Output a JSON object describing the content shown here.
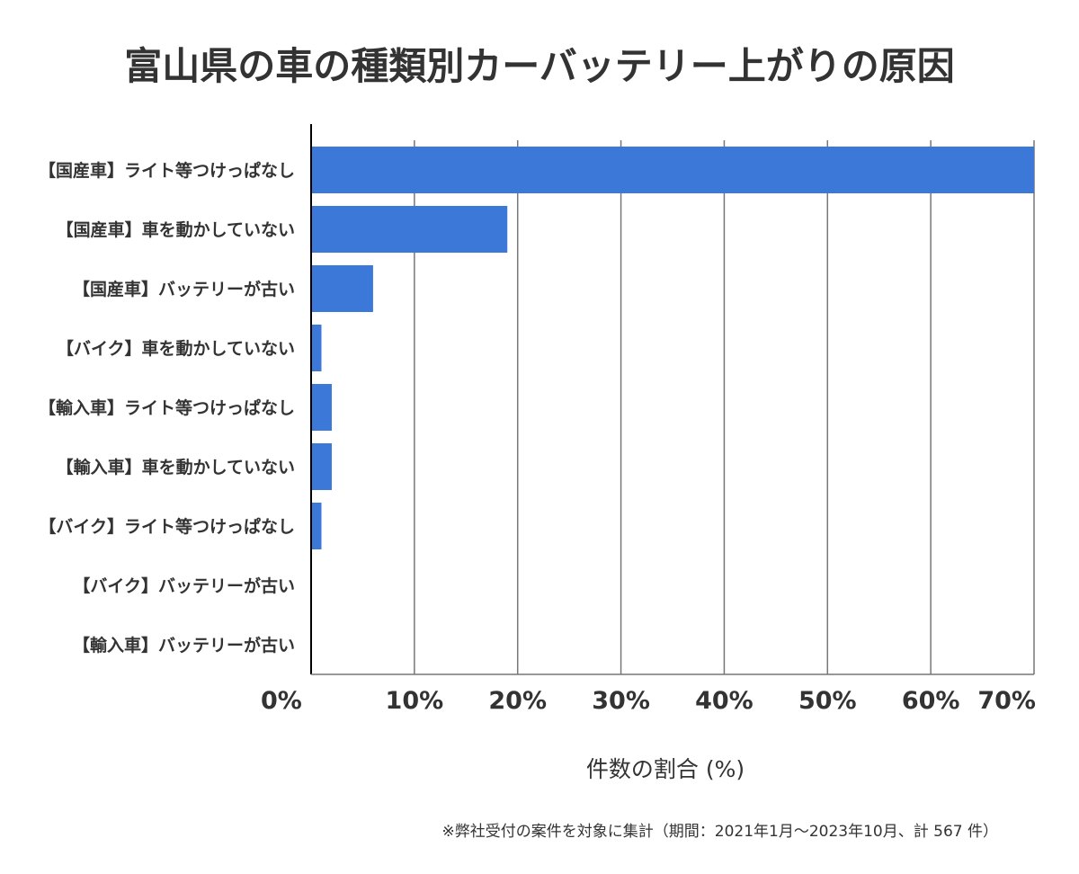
{
  "chart_data": {
    "type": "bar",
    "orientation": "horizontal",
    "title": "富山県の車の種類別カーバッテリー上がりの原因",
    "xlabel": "件数の割合 (%)",
    "ylabel": "",
    "categories": [
      "【国産車】ライト等つけっぱなし",
      "【国産車】車を動かしていない",
      "【国産車】バッテリーが古い",
      "【バイク】車を動かしていない",
      "【輸入車】ライト等つけっぱなし",
      "【輸入車】車を動かしていない",
      "【バイク】ライト等つけっぱなし",
      "【バイク】バッテリーが古い",
      "【輸入車】バッテリーが古い"
    ],
    "values": [
      70,
      19.0,
      6.0,
      1.0,
      2.0,
      2.0,
      1.0,
      0,
      0
    ],
    "xlim": [
      0,
      70
    ],
    "xticks": [
      "0%",
      "10%",
      "20%",
      "30%",
      "40%",
      "50%",
      "60%",
      "70%"
    ],
    "grid": true,
    "bar_color": "#3c78d8",
    "note": "※弊社受付の案件を対象に集計（期間：2021年1月～2023年10月、計 567 件）"
  }
}
